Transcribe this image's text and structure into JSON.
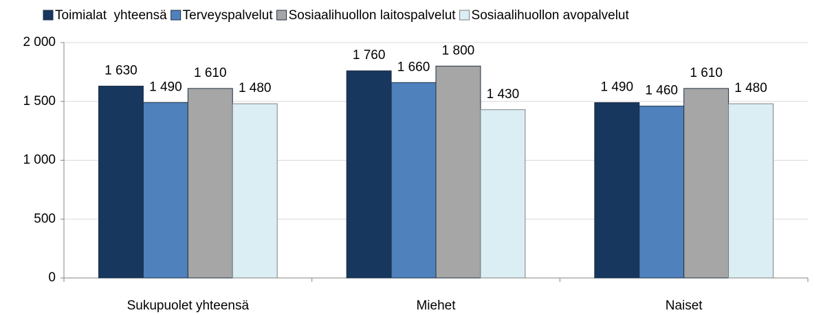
{
  "chart_data": {
    "type": "bar",
    "categories": [
      "Sukupuolet yhteensä",
      "Miehet",
      "Naiset"
    ],
    "series": [
      {
        "name": "Toimialat  yhteensä",
        "color": "#17375e",
        "values": [
          1630,
          1760,
          1490
        ],
        "value_labels": [
          "1 630",
          "1 760",
          "1 490"
        ]
      },
      {
        "name": "Terveyspalvelut",
        "color": "#4f81bd",
        "values": [
          1490,
          1660,
          1460
        ],
        "value_labels": [
          "1 490",
          "1 660",
          "1 460"
        ]
      },
      {
        "name": "Sosiaalihuollon laitospalvelut",
        "color": "#a6a6a6",
        "values": [
          1610,
          1800,
          1610
        ],
        "value_labels": [
          "1 610",
          "1 800",
          "1 610"
        ]
      },
      {
        "name": "Sosiaalihuollon avopalvelut",
        "color": "#dbeef4",
        "values": [
          1480,
          1430,
          1480
        ],
        "value_labels": [
          "1 480",
          "1 430",
          "1 480"
        ]
      }
    ],
    "ylim": [
      0,
      2000
    ],
    "yticks": [
      0,
      500,
      {
        "value": 1000,
        "label": "1 000"
      },
      {
        "value": 1500,
        "label": "1 500"
      },
      {
        "value": 2000,
        "label": "2 000"
      }
    ],
    "grid": true,
    "legend": "top"
  }
}
